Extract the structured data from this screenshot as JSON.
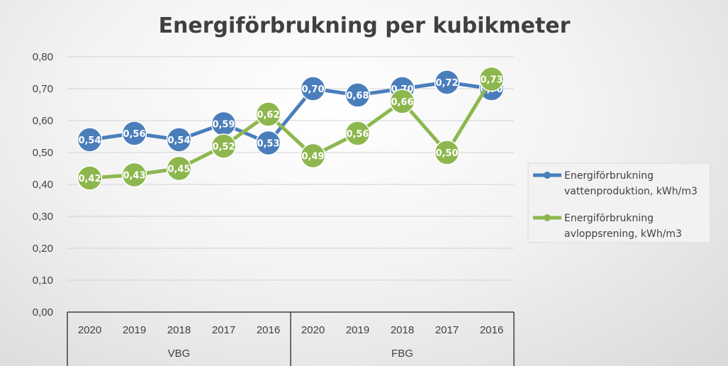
{
  "chart_data": {
    "type": "line",
    "title": "Energiförbrukning per kubikmeter",
    "xlabel": "",
    "ylabel": "",
    "ylim": [
      0,
      0.8
    ],
    "y_ticks": [
      "0,00",
      "0,10",
      "0,20",
      "0,30",
      "0,40",
      "0,50",
      "0,60",
      "0,70",
      "0,80"
    ],
    "y_tick_values": [
      0,
      0.1,
      0.2,
      0.3,
      0.4,
      0.5,
      0.6,
      0.7,
      0.8
    ],
    "categories": [
      "2020",
      "2019",
      "2018",
      "2017",
      "2016",
      "2020",
      "2019",
      "2018",
      "2017",
      "2016"
    ],
    "groups": [
      {
        "label": "VBG",
        "span": 5
      },
      {
        "label": "FBG",
        "span": 5
      }
    ],
    "grid": true,
    "legend_position": "right",
    "series": [
      {
        "name": "Energiförbrukning vattenproduktion, kWh/m3",
        "name_lines": [
          "Energiförbrukning",
          "vattenproduktion, kWh/m3"
        ],
        "color": "#4a7ebb",
        "values": [
          0.54,
          0.56,
          0.54,
          0.59,
          0.53,
          0.7,
          0.68,
          0.7,
          0.72,
          0.7
        ],
        "labels": [
          "0,54",
          "0,56",
          "0,54",
          "0,59",
          "0,53",
          "0,70",
          "0,68",
          "0,70",
          "0,72",
          "0,70"
        ]
      },
      {
        "name": "Energiförbrukning avloppsrening, kWh/m3",
        "name_lines": [
          "Energiförbrukning",
          "avloppsrening, kWh/m3"
        ],
        "color": "#8db74e",
        "values": [
          0.42,
          0.43,
          0.45,
          0.52,
          0.62,
          0.49,
          0.56,
          0.66,
          0.5,
          0.73
        ],
        "labels": [
          "0,42",
          "0,43",
          "0,45",
          "0,52",
          "0,62",
          "0,49",
          "0,56",
          "0,66",
          "0,50",
          "0,73"
        ]
      }
    ]
  }
}
